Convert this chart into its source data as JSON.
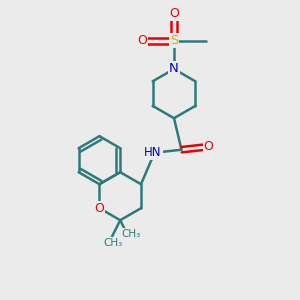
{
  "bg_color": "#ebebeb",
  "bond_color": "#2d7a7a",
  "N_color": "#0000dd",
  "O_color": "#ee0000",
  "S_color": "#bbbb00",
  "lw": 1.8,
  "figsize": [
    3.0,
    3.0
  ],
  "dpi": 100,
  "xlim": [
    0,
    10
  ],
  "ylim": [
    0,
    10
  ]
}
